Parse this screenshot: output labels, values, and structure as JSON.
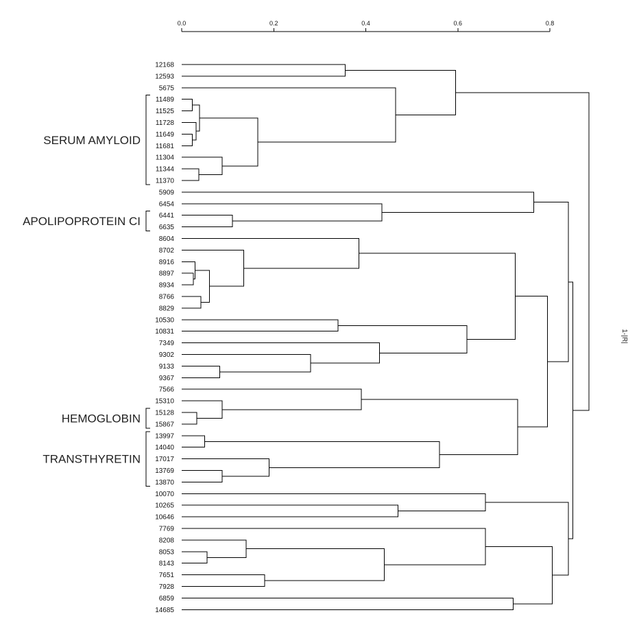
{
  "chart_data": {
    "type": "dendrogram",
    "axis_title": "1-|R|",
    "xlim": [
      0.0,
      0.8
    ],
    "ticks": [
      {
        "value": 0.0,
        "label": "0.0"
      },
      {
        "value": 0.2,
        "label": "0.2"
      },
      {
        "value": 0.4,
        "label": "0.4"
      },
      {
        "value": 0.6,
        "label": "0.6"
      },
      {
        "value": 0.8,
        "label": "0.8"
      }
    ],
    "leaves": [
      "12168",
      "12593",
      "5675",
      "11489",
      "11525",
      "11728",
      "11649",
      "11681",
      "11304",
      "11344",
      "11370",
      "5909",
      "6454",
      "6441",
      "6635",
      "8604",
      "8702",
      "8916",
      "8897",
      "8934",
      "8766",
      "8829",
      "10530",
      "10831",
      "7349",
      "9302",
      "9133",
      "9367",
      "7566",
      "15310",
      "15128",
      "15867",
      "13997",
      "14040",
      "17017",
      "13769",
      "13870",
      "10070",
      "10265",
      "10646",
      "7769",
      "8208",
      "8053",
      "8143",
      "7651",
      "7928",
      "6859",
      "14685"
    ],
    "merges": [
      {
        "id": "A1",
        "children": [
          "11489",
          "11525"
        ],
        "height": 0.023
      },
      {
        "id": "A2",
        "children": [
          "11649",
          "11681"
        ],
        "height": 0.023
      },
      {
        "id": "A3",
        "children": [
          "11728",
          "A2"
        ],
        "height": 0.031
      },
      {
        "id": "A4",
        "children": [
          "A1",
          "A3"
        ],
        "height": 0.039
      },
      {
        "id": "A5",
        "children": [
          "11344",
          "11370"
        ],
        "height": 0.037
      },
      {
        "id": "A6",
        "children": [
          "11304",
          "A5"
        ],
        "height": 0.088
      },
      {
        "id": "A7",
        "children": [
          "A4",
          "A6"
        ],
        "height": 0.165
      },
      {
        "id": "A8",
        "children": [
          "5675",
          "A7"
        ],
        "height": 0.465
      },
      {
        "id": "A9",
        "children": [
          "12168",
          "12593"
        ],
        "height": 0.355
      },
      {
        "id": "A10",
        "children": [
          "A9",
          "A8"
        ],
        "height": 0.595
      },
      {
        "id": "B1",
        "children": [
          "6441",
          "6635"
        ],
        "height": 0.11
      },
      {
        "id": "B2",
        "children": [
          "6454",
          "B1"
        ],
        "height": 0.435
      },
      {
        "id": "B3",
        "children": [
          "5909",
          "B2"
        ],
        "height": 0.765
      },
      {
        "id": "C1",
        "children": [
          "8897",
          "8934"
        ],
        "height": 0.025
      },
      {
        "id": "C2",
        "children": [
          "8916",
          "C1"
        ],
        "height": 0.029
      },
      {
        "id": "C3",
        "children": [
          "8766",
          "8829"
        ],
        "height": 0.042
      },
      {
        "id": "C4",
        "children": [
          "C2",
          "C3"
        ],
        "height": 0.06
      },
      {
        "id": "C5",
        "children": [
          "8702",
          "C4"
        ],
        "height": 0.135
      },
      {
        "id": "C6",
        "children": [
          "8604",
          "C5"
        ],
        "height": 0.385
      },
      {
        "id": "C7",
        "children": [
          "10530",
          "10831"
        ],
        "height": 0.34
      },
      {
        "id": "C8",
        "children": [
          "9133",
          "9367"
        ],
        "height": 0.083
      },
      {
        "id": "C9",
        "children": [
          "9302",
          "C8"
        ],
        "height": 0.28
      },
      {
        "id": "C10",
        "children": [
          "7349",
          "C9"
        ],
        "height": 0.43
      },
      {
        "id": "C11",
        "children": [
          "C7",
          "C10"
        ],
        "height": 0.62
      },
      {
        "id": "C12",
        "children": [
          "C6",
          "C11"
        ],
        "height": 0.725
      },
      {
        "id": "D1",
        "children": [
          "15128",
          "15867"
        ],
        "height": 0.033
      },
      {
        "id": "D2",
        "children": [
          "15310",
          "D1"
        ],
        "height": 0.088
      },
      {
        "id": "D3",
        "children": [
          "7566",
          "D2"
        ],
        "height": 0.39
      },
      {
        "id": "D4",
        "children": [
          "13997",
          "14040"
        ],
        "height": 0.05
      },
      {
        "id": "D5",
        "children": [
          "13769",
          "13870"
        ],
        "height": 0.088
      },
      {
        "id": "D6",
        "children": [
          "17017",
          "D5"
        ],
        "height": 0.19
      },
      {
        "id": "D7",
        "children": [
          "D4",
          "D6"
        ],
        "height": 0.56
      },
      {
        "id": "D8",
        "children": [
          "D3",
          "D7"
        ],
        "height": 0.73
      },
      {
        "id": "D9",
        "children": [
          "C12",
          "D8"
        ],
        "height": 0.795
      },
      {
        "id": "D10",
        "children": [
          "B3",
          "D9"
        ],
        "height": 0.84
      },
      {
        "id": "E1",
        "children": [
          "10265",
          "10646"
        ],
        "height": 0.47
      },
      {
        "id": "E2",
        "children": [
          "10070",
          "E1"
        ],
        "height": 0.66
      },
      {
        "id": "E3",
        "children": [
          "8053",
          "8143"
        ],
        "height": 0.055
      },
      {
        "id": "E4",
        "children": [
          "8208",
          "E3"
        ],
        "height": 0.14
      },
      {
        "id": "E5",
        "children": [
          "7651",
          "7928"
        ],
        "height": 0.18
      },
      {
        "id": "E6",
        "children": [
          "E4",
          "E5"
        ],
        "height": 0.44
      },
      {
        "id": "E7",
        "children": [
          "7769",
          "E6"
        ],
        "height": 0.66
      },
      {
        "id": "E8",
        "children": [
          "6859",
          "14685"
        ],
        "height": 0.72
      },
      {
        "id": "E9",
        "children": [
          "E7",
          "E8"
        ],
        "height": 0.805
      },
      {
        "id": "E10",
        "children": [
          "E2",
          "E9"
        ],
        "height": 0.84
      },
      {
        "id": "F1",
        "children": [
          "D10",
          "E10"
        ],
        "height": 0.85
      },
      {
        "id": "ROOT",
        "children": [
          "A10",
          "F1"
        ],
        "height": 0.885
      }
    ],
    "groups": [
      {
        "label": "SERUM AMYLOID",
        "from_leaf": "11489",
        "to_leaf": "11370"
      },
      {
        "label": "APOLIPOPROTEIN CI",
        "from_leaf": "6441",
        "to_leaf": "6635"
      },
      {
        "label": "HEMOGLOBIN",
        "from_leaf": "15128",
        "to_leaf": "15867"
      },
      {
        "label": "TRANSTHYRETIN",
        "from_leaf": "13997",
        "to_leaf": "13870"
      }
    ]
  }
}
